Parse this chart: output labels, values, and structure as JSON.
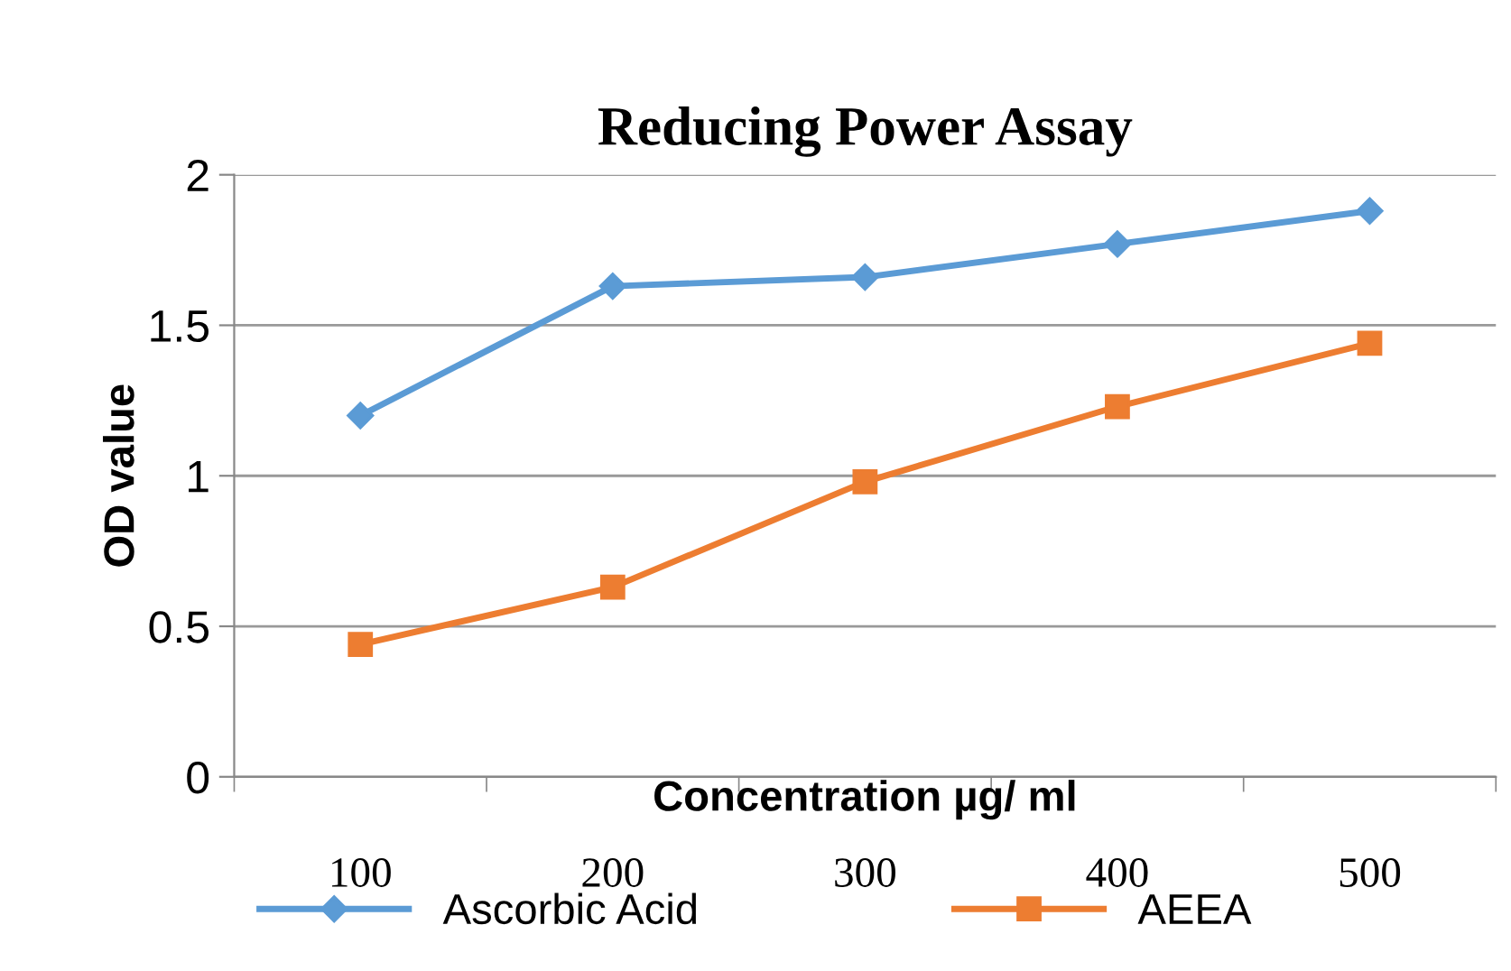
{
  "chart_data": {
    "type": "line",
    "title": "Reducing Power Assay",
    "xlabel": "Concentration µg/ ml",
    "ylabel": "OD value",
    "categories": [
      "100",
      "200",
      "300",
      "400",
      "500"
    ],
    "series": [
      {
        "name": "Ascorbic Acid",
        "color": "#5b9bd5",
        "marker": "diamond",
        "values": [
          1.2,
          1.63,
          1.66,
          1.77,
          1.88
        ]
      },
      {
        "name": "AEEA",
        "color": "#ed7d31",
        "marker": "square",
        "values": [
          0.44,
          0.63,
          0.98,
          1.23,
          1.44
        ]
      }
    ],
    "ylim": [
      0,
      2
    ],
    "yticks": [
      0,
      0.5,
      1,
      1.5,
      2
    ],
    "grid": "y",
    "legend": "bottom",
    "line_style": "solid"
  }
}
